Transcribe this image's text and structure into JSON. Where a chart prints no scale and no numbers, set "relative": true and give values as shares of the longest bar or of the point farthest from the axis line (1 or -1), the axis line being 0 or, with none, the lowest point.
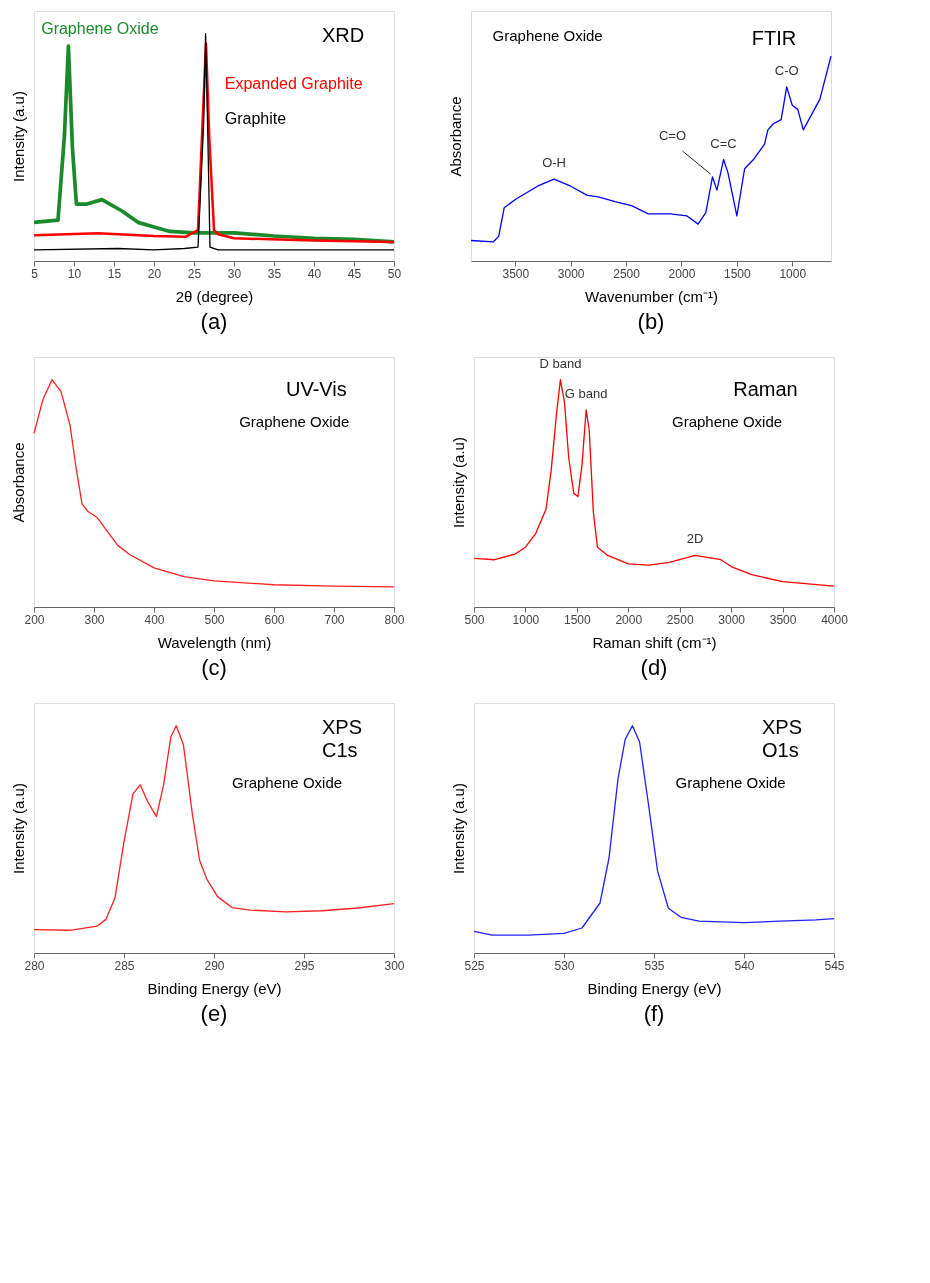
{
  "chart_data": [
    {
      "type": "line",
      "title": "(a)",
      "xlabel": "2θ  (degree)",
      "ylabel": "Intensity (a.u)",
      "relative": true,
      "xlim": [
        5,
        50
      ],
      "xticks": [
        5,
        10,
        15,
        20,
        25,
        30,
        35,
        40,
        45,
        50
      ],
      "annotations": [
        "XRD"
      ],
      "series": [
        {
          "name": "Graphene Oxide",
          "color": "#1b8a2a",
          "x": [
            5,
            8,
            8.8,
            9.3,
            9.8,
            10.3,
            11.5,
            13.5,
            16,
            18,
            20,
            22,
            25,
            30,
            35,
            40,
            45,
            50
          ],
          "values": [
            0.17,
            0.18,
            0.55,
            0.946,
            0.5,
            0.25,
            0.25,
            0.27,
            0.22,
            0.17,
            0.15,
            0.13,
            0.124,
            0.124,
            0.11,
            0.1,
            0.095,
            0.084
          ]
        },
        {
          "name": "Expanded Graphite",
          "color": "#ff0000",
          "x": [
            5,
            13,
            20,
            24,
            25.5,
            26,
            26.5,
            26.9,
            27.5,
            28,
            30,
            40,
            50
          ],
          "values": [
            0.113,
            0.122,
            0.11,
            0.107,
            0.136,
            0.55,
            0.957,
            0.55,
            0.136,
            0.118,
            0.1,
            0.09,
            0.084
          ]
        },
        {
          "name": "Graphite",
          "color": "#000000",
          "x": [
            5,
            15.5,
            20,
            23.8,
            25.5,
            26.2,
            26.45,
            26.7,
            27,
            28,
            50
          ],
          "values": [
            0.049,
            0.055,
            0.049,
            0.055,
            0.061,
            0.6,
            1.0,
            0.6,
            0.061,
            0.049,
            0.049
          ]
        }
      ]
    },
    {
      "type": "line",
      "title": "(b)",
      "xlabel": "Wavenumber (cm⁻¹)",
      "ylabel": "Absorbance",
      "relative": true,
      "xlim": [
        3900,
        650
      ],
      "xticks": [
        3500,
        3000,
        2500,
        2000,
        1500,
        1000
      ],
      "annotations": [
        "Graphene Oxide",
        "FTIR",
        {
          "text": "O-H",
          "x": 3150,
          "y": 0.4
        },
        {
          "text": "C=O",
          "x": 1720,
          "y": 0.41
        },
        {
          "text": "C=C",
          "x": 1620,
          "y": 0.495
        },
        {
          "text": "C-O",
          "x": 1050,
          "y": 0.85
        }
      ],
      "x": [
        3900,
        3700,
        3650,
        3600,
        3500,
        3300,
        3150,
        3000,
        2850,
        2750,
        2600,
        2450,
        2300,
        2100,
        1950,
        1850,
        1780,
        1720,
        1680,
        1620,
        1580,
        1500,
        1430,
        1350,
        1250,
        1220,
        1170,
        1100,
        1050,
        1000,
        950,
        900,
        850,
        750,
        650
      ],
      "series": [
        {
          "color": "#0000ff",
          "values": [
            0.1,
            0.093,
            0.12,
            0.26,
            0.3,
            0.365,
            0.4,
            0.365,
            0.32,
            0.313,
            0.29,
            0.27,
            0.23,
            0.23,
            0.22,
            0.18,
            0.236,
            0.41,
            0.346,
            0.495,
            0.43,
            0.22,
            0.45,
            0.495,
            0.57,
            0.64,
            0.67,
            0.69,
            0.85,
            0.76,
            0.74,
            0.64,
            0.69,
            0.79,
            1.0
          ]
        }
      ]
    },
    {
      "type": "line",
      "title": "(c)",
      "xlabel": "Wavelength (nm)",
      "ylabel": "Absorbance",
      "relative": true,
      "xlim": [
        200,
        800
      ],
      "xticks": [
        200,
        300,
        400,
        500,
        600,
        700,
        800
      ],
      "annotations": [
        "UV-Vis",
        "Graphene Oxide"
      ],
      "x": [
        200,
        215,
        230,
        245,
        260,
        270,
        280,
        290,
        305,
        320,
        340,
        360,
        400,
        450,
        500,
        600,
        700,
        800
      ],
      "series": [
        {
          "color": "#ff2020",
          "values": [
            0.764,
            0.914,
            1.0,
            0.948,
            0.8,
            0.615,
            0.454,
            0.42,
            0.394,
            0.34,
            0.27,
            0.23,
            0.172,
            0.134,
            0.115,
            0.098,
            0.092,
            0.0885
          ]
        }
      ]
    },
    {
      "type": "line",
      "title": "(d)",
      "xlabel": "Raman shift (cm⁻¹)",
      "ylabel": "Intensity (a.u)",
      "relative": true,
      "xlim": [
        500,
        4000
      ],
      "xticks": [
        500,
        1000,
        1500,
        2000,
        2500,
        3000,
        3500,
        4000
      ],
      "annotations": [
        "Raman",
        "Graphene Oxide",
        {
          "text": "D band",
          "x": 1340,
          "y": 1.0
        },
        {
          "text": "G band",
          "x": 1590,
          "y": 0.867
        },
        {
          "text": "2D",
          "x": 2650,
          "y": 0.227
        }
      ],
      "x": [
        500,
        700,
        900,
        1000,
        1100,
        1200,
        1250,
        1300,
        1340,
        1380,
        1420,
        1470,
        1510,
        1550,
        1590,
        1620,
        1660,
        1700,
        1800,
        2000,
        2200,
        2400,
        2650,
        2900,
        3000,
        3200,
        3500,
        4000
      ],
      "series": [
        {
          "color": "#ff0000",
          "values": [
            0.214,
            0.208,
            0.233,
            0.263,
            0.323,
            0.43,
            0.6,
            0.84,
            1.0,
            0.9,
            0.66,
            0.5,
            0.486,
            0.624,
            0.867,
            0.78,
            0.42,
            0.263,
            0.227,
            0.19,
            0.184,
            0.196,
            0.227,
            0.208,
            0.178,
            0.142,
            0.112,
            0.0916
          ]
        }
      ]
    },
    {
      "type": "line",
      "title": "(e)",
      "xlabel": "Binding Energy (eV)",
      "ylabel": "Intensity (a.u)",
      "relative": true,
      "xlim": [
        280,
        300
      ],
      "xticks": [
        280,
        285,
        290,
        295,
        300
      ],
      "annotations": [
        "XPS",
        "C1s",
        "Graphene Oxide"
      ],
      "x": [
        280,
        282,
        283.5,
        284,
        284.5,
        285,
        285.5,
        285.9,
        286.3,
        286.8,
        287.2,
        287.6,
        287.9,
        288.3,
        288.8,
        289.2,
        289.6,
        290.2,
        291,
        292,
        294,
        296,
        298,
        300
      ],
      "series": [
        {
          "color": "#ff2020",
          "values": [
            0.103,
            0.1,
            0.118,
            0.148,
            0.243,
            0.49,
            0.7,
            0.74,
            0.669,
            0.6,
            0.74,
            0.95,
            1.0,
            0.917,
            0.61,
            0.408,
            0.325,
            0.248,
            0.2,
            0.189,
            0.181,
            0.186,
            0.198,
            0.217
          ]
        }
      ]
    },
    {
      "type": "line",
      "title": "(f)",
      "xlabel": "Binding Energy (eV)",
      "ylabel": "Intensity (a.u)",
      "relative": true,
      "xlim": [
        525,
        545
      ],
      "xticks": [
        525,
        530,
        535,
        540,
        545
      ],
      "annotations": [
        "XPS",
        "O1s",
        "Graphene Oxide"
      ],
      "x": [
        525,
        526,
        528,
        530,
        531,
        532,
        532.5,
        533,
        533.4,
        533.8,
        534.2,
        534.7,
        535.2,
        535.8,
        536.5,
        537.5,
        540,
        542,
        544,
        545
      ],
      "series": [
        {
          "color": "#2020ff",
          "values": [
            0.095,
            0.079,
            0.079,
            0.086,
            0.11,
            0.22,
            0.418,
            0.766,
            0.94,
            1.0,
            0.928,
            0.65,
            0.36,
            0.197,
            0.157,
            0.14,
            0.134,
            0.14,
            0.146,
            0.151
          ]
        }
      ]
    }
  ]
}
